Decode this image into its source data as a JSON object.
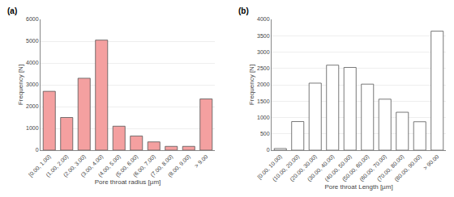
{
  "chart_data": [
    {
      "type": "bar",
      "title": "(a)",
      "categories": [
        "[0.00, 1.00)",
        "(1.00, 2.00)",
        "(2.00, 3.00)",
        "(3.00, 4.00)",
        "(4.00, 5.00)",
        "(5.00, 6.00)",
        "(6.00, 7.00)",
        "(7.00, 8.00)",
        "(8.00, 9.00)",
        "> 9.00"
      ],
      "values": [
        2700,
        1500,
        3300,
        5050,
        1100,
        650,
        380,
        175,
        175,
        2350
      ],
      "color": "#f4a0a0",
      "xlabel": "Pore throat radius [µm]",
      "ylabel": "Frequency [N]",
      "ylim": [
        0,
        6000
      ],
      "yticks": [
        0,
        1000,
        2000,
        3000,
        4000,
        5000,
        6000
      ],
      "grid": true
    },
    {
      "type": "bar",
      "title": "(b)",
      "categories": [
        "[0.00, 10.00)",
        "(10.00, 20.00)",
        "(20.00, 30.00)",
        "(30.00, 40.00)",
        "(40.00, 50.00)",
        "(50.00, 60.00)",
        "(60.00, 70.00)",
        "(70.00, 80.00)",
        "(80.00, 90.00)",
        "> 90.00"
      ],
      "values": [
        50,
        875,
        2050,
        2600,
        2530,
        2020,
        1560,
        1160,
        870,
        3640
      ],
      "color": "#ffffff",
      "xlabel": "Pore throat Length [µm]",
      "ylabel": "Frequency [N]",
      "ylim": [
        0,
        4000
      ],
      "yticks": [
        0,
        500,
        1000,
        1500,
        2000,
        2500,
        3000,
        3500,
        4000
      ],
      "grid": true
    }
  ]
}
